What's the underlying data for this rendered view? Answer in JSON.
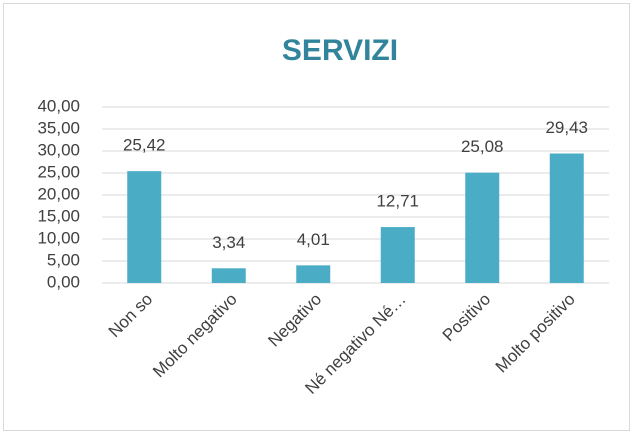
{
  "chart_data": {
    "type": "bar",
    "title": "SERVIZI",
    "categories": [
      "Non so",
      "Molto negativo",
      "Negativo",
      "Né negativo Né…",
      "Positivo",
      "Molto positivo"
    ],
    "values": [
      25.42,
      3.34,
      4.01,
      12.71,
      25.08,
      29.43
    ],
    "value_labels": [
      "25,42",
      "3,34",
      "4,01",
      "12,71",
      "25,08",
      "29,43"
    ],
    "color": "#4bacc6",
    "ylim": [
      0,
      40
    ],
    "yticks": [
      {
        "value": 0,
        "label": "0,00"
      },
      {
        "value": 5,
        "label": "5,00"
      },
      {
        "value": 10,
        "label": "10,00"
      },
      {
        "value": 15,
        "label": "15,00"
      },
      {
        "value": 20,
        "label": "20,00"
      },
      {
        "value": 25,
        "label": "25,00"
      },
      {
        "value": 30,
        "label": "30,00"
      },
      {
        "value": 35,
        "label": "35,00"
      },
      {
        "value": 40,
        "label": "40,00"
      }
    ],
    "grid": true
  }
}
